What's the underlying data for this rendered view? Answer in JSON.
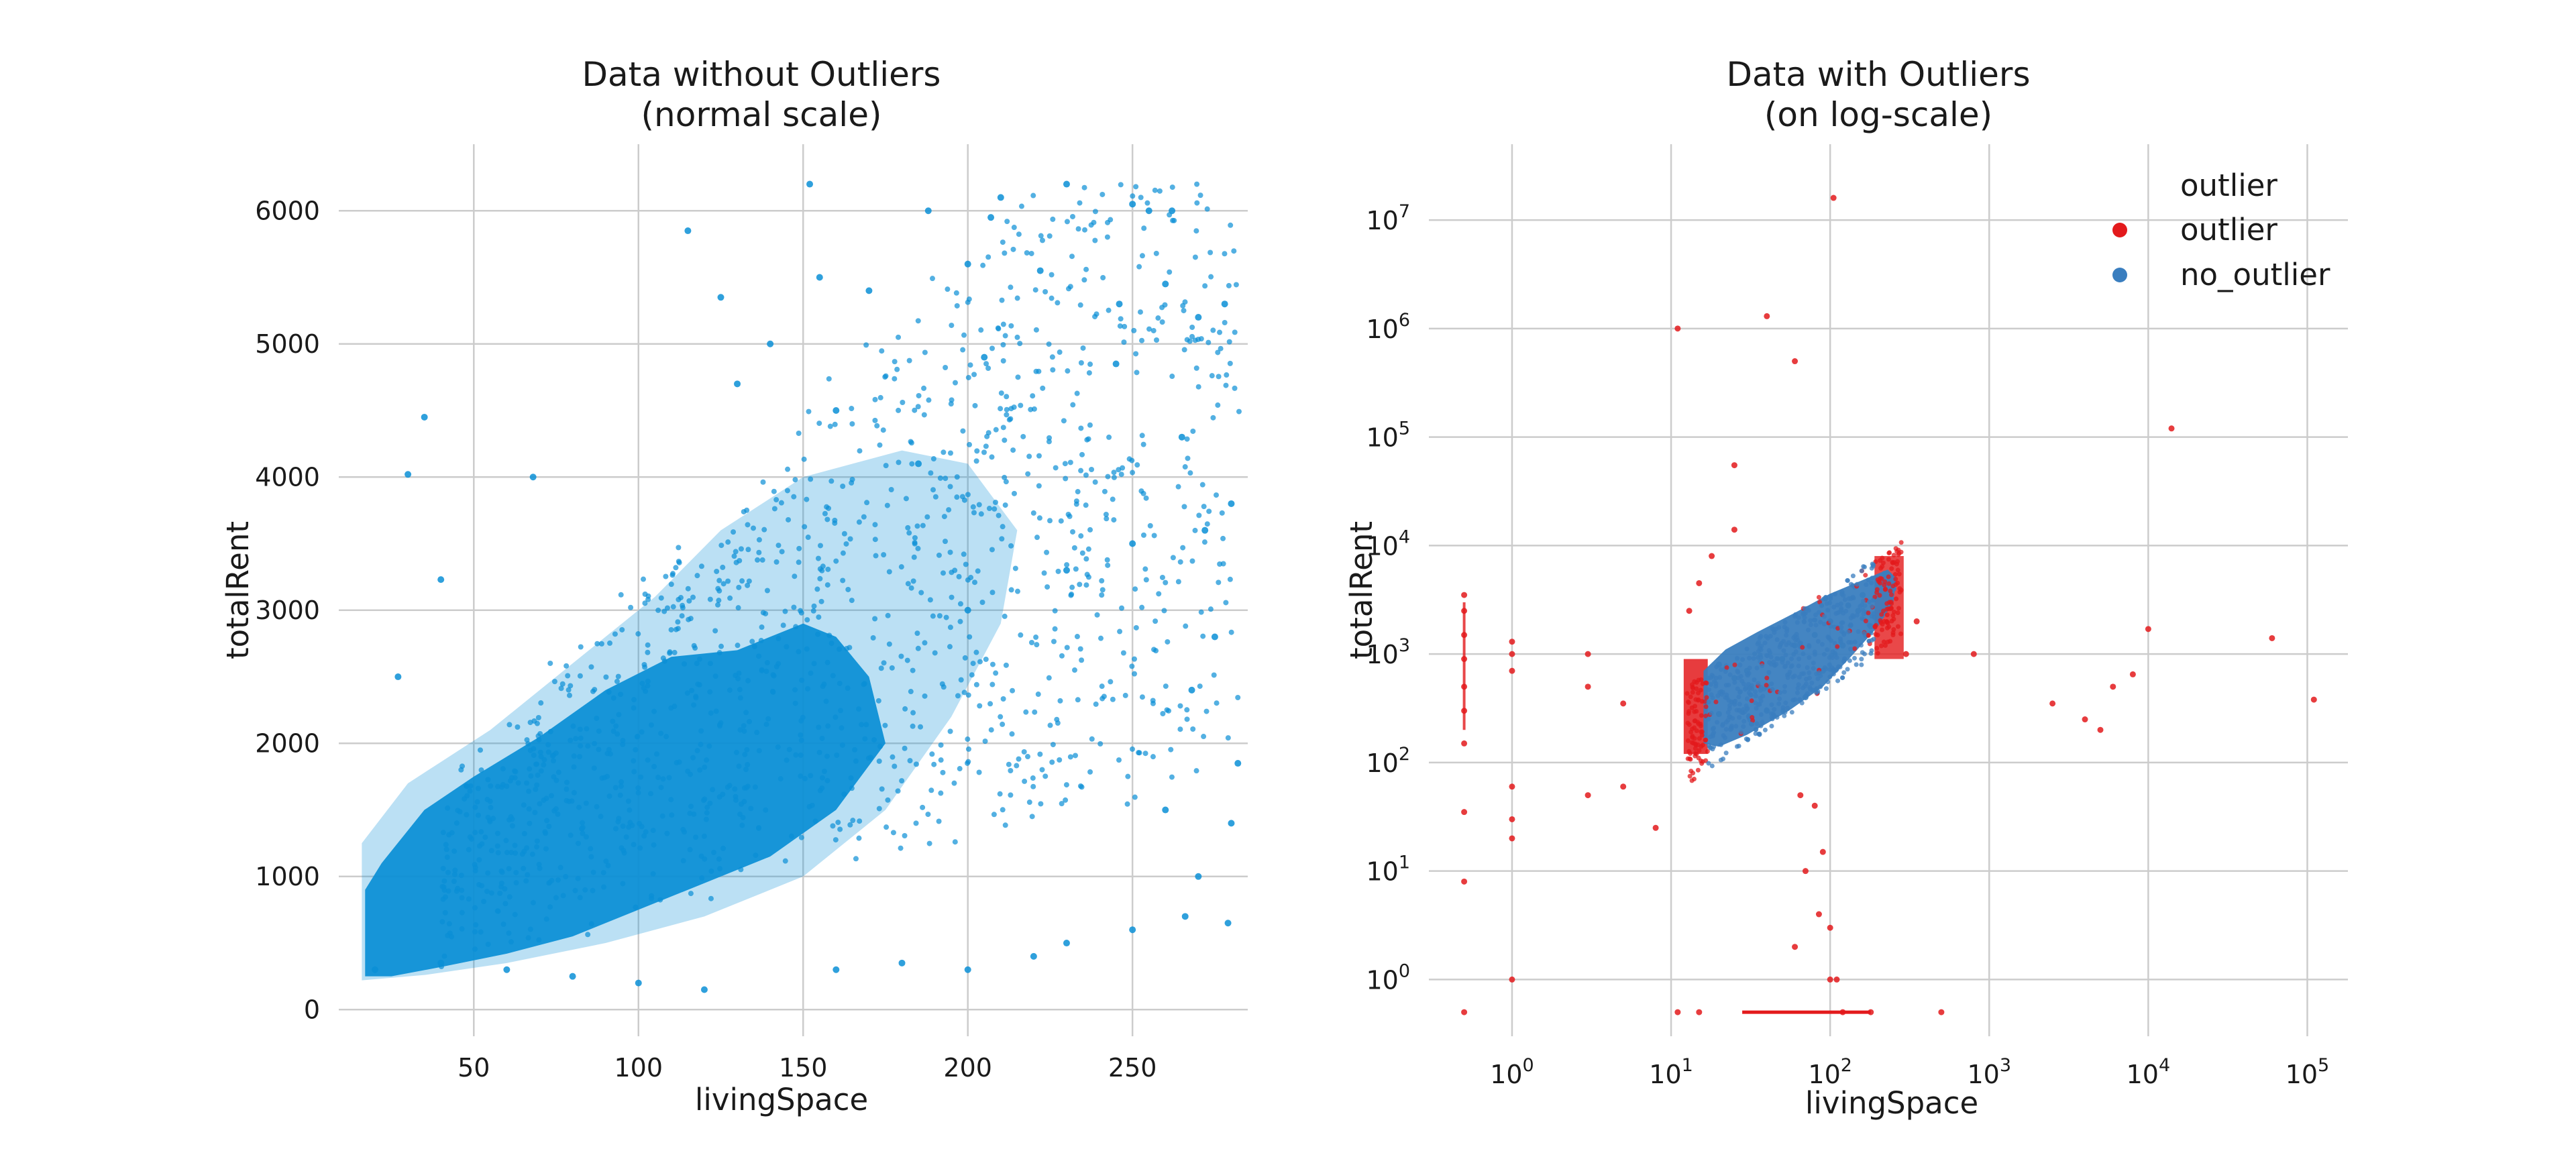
{
  "chart_data": [
    {
      "type": "scatter",
      "title": [
        "Data without Outliers",
        "(normal scale)"
      ],
      "xlabel": "livingSpace",
      "ylabel": "totalRent",
      "xlim": [
        9,
        285
      ],
      "ylim": [
        -200,
        6500
      ],
      "xticks": [
        50,
        100,
        150,
        200,
        250
      ],
      "yticks": [
        0,
        1000,
        2000,
        3000,
        4000,
        5000,
        6000
      ],
      "grid": true,
      "x_scale": "linear",
      "y_scale": "linear",
      "series": [
        {
          "color": "#0a8fd6",
          "points": [
            [
              35,
              4450
            ],
            [
              30,
              4020
            ],
            [
              40,
              3230
            ],
            [
              27,
              2500
            ],
            [
              68,
              4000
            ],
            [
              115,
              5850
            ],
            [
              152,
              6200
            ],
            [
              210,
              6100
            ],
            [
              230,
              6200
            ],
            [
              250,
              6050
            ],
            [
              255,
              6000
            ],
            [
              262,
              6000
            ],
            [
              188,
              6000
            ],
            [
              207,
              5950
            ],
            [
              155,
              5500
            ],
            [
              278,
              5300
            ],
            [
              270,
              5200
            ],
            [
              246,
              5300
            ],
            [
              260,
              5450
            ],
            [
              170,
              5400
            ],
            [
              200,
              5600
            ],
            [
              222,
              5550
            ],
            [
              140,
              5000
            ],
            [
              130,
              4700
            ],
            [
              125,
              5350
            ],
            [
              160,
              4500
            ],
            [
              185,
              4100
            ],
            [
              205,
              4900
            ],
            [
              245,
              4850
            ],
            [
              265,
              4300
            ],
            [
              280,
              3800
            ],
            [
              272,
              3600
            ],
            [
              250,
              3500
            ],
            [
              230,
              3300
            ],
            [
              200,
              3000
            ],
            [
              275,
              2800
            ],
            [
              268,
              2400
            ],
            [
              260,
              1500
            ],
            [
              280,
              1400
            ],
            [
              282,
              1850
            ],
            [
              270,
              1000
            ],
            [
              266,
              700
            ],
            [
              279,
              650
            ],
            [
              250,
              600
            ],
            [
              230,
              500
            ],
            [
              200,
              300
            ],
            [
              220,
              400
            ],
            [
              180,
              350
            ],
            [
              160,
              300
            ],
            [
              120,
              150
            ],
            [
              100,
              200
            ],
            [
              80,
              250
            ],
            [
              60,
              300
            ],
            [
              40,
              350
            ],
            [
              20,
              300
            ]
          ]
        }
      ]
    },
    {
      "type": "scatter",
      "title": [
        "Data with Outliers",
        "(on log-scale)"
      ],
      "xlabel": "livingSpace",
      "ylabel": "totalRent",
      "x_scale": "log",
      "y_scale": "log",
      "xlim": [
        0.3,
        180000
      ],
      "ylim": [
        0.3,
        50000000
      ],
      "xticks": [
        1,
        10,
        100,
        1000,
        10000,
        100000
      ],
      "yticks": [
        1,
        10,
        100,
        1000,
        10000,
        100000,
        1000000,
        10000000
      ],
      "grid": true,
      "legend": {
        "title": "outlier",
        "placement": "top-right",
        "entries": [
          {
            "label": "outlier",
            "color": "#e31a1c"
          },
          {
            "label": "no_outlier",
            "color": "#3a7ebf"
          }
        ]
      },
      "series": [
        {
          "name": "outlier",
          "color": "#e31a1c",
          "points": [
            [
              0.5,
              0.5
            ],
            [
              0.5,
              3500
            ],
            [
              0.5,
              2500
            ],
            [
              0.5,
              1500
            ],
            [
              0.5,
              900
            ],
            [
              0.5,
              500
            ],
            [
              0.5,
              300
            ],
            [
              0.5,
              150
            ],
            [
              0.5,
              35
            ],
            [
              0.5,
              8
            ],
            [
              1,
              1000
            ],
            [
              1,
              1300
            ],
            [
              1,
              60
            ],
            [
              1,
              30
            ],
            [
              1,
              1
            ],
            [
              1,
              20
            ],
            [
              1,
              700
            ],
            [
              3,
              1000
            ],
            [
              3,
              500
            ],
            [
              3,
              50
            ],
            [
              5,
              350
            ],
            [
              5,
              60
            ],
            [
              8,
              25
            ],
            [
              11,
              1000000
            ],
            [
              13,
              2500
            ],
            [
              15,
              4500
            ],
            [
              18,
              8000
            ],
            [
              25,
              14000
            ],
            [
              25,
              55000
            ],
            [
              40,
              1300000
            ],
            [
              60,
              500000
            ],
            [
              105,
              16000000
            ],
            [
              80,
              40
            ],
            [
              90,
              15
            ],
            [
              85,
              4
            ],
            [
              70,
              10
            ],
            [
              60,
              2
            ],
            [
              65,
              50
            ],
            [
              100,
              3
            ],
            [
              100,
              1
            ],
            [
              110,
              1
            ],
            [
              120,
              0.5
            ],
            [
              180,
              0.5
            ],
            [
              500,
              0.5
            ],
            [
              11,
              0.5
            ],
            [
              15,
              0.5
            ],
            [
              14000,
              120000
            ],
            [
              800,
              1000
            ],
            [
              2500,
              350
            ],
            [
              4000,
              250
            ],
            [
              5000,
              200
            ],
            [
              6000,
              500
            ],
            [
              8000,
              650
            ],
            [
              10000,
              1700
            ],
            [
              60000,
              1400
            ],
            [
              110000,
              380
            ],
            [
              300,
              1000
            ],
            [
              350,
              2000
            ]
          ]
        },
        {
          "name": "no_outlier",
          "color": "#3a7ebf",
          "points": [
            [
              20,
              280
            ],
            [
              20,
              800
            ],
            [
              25,
              600
            ],
            [
              30,
              700
            ],
            [
              40,
              500
            ],
            [
              50,
              900
            ],
            [
              60,
              1200
            ],
            [
              80,
              1500
            ],
            [
              100,
              2000
            ],
            [
              130,
              2800
            ],
            [
              160,
              3500
            ],
            [
              200,
              4500
            ],
            [
              220,
              5500
            ],
            [
              120,
              1200
            ],
            [
              90,
              700
            ],
            [
              70,
              400
            ],
            [
              40,
              300
            ],
            [
              150,
              2500
            ],
            [
              180,
              1800
            ],
            [
              250,
              4000
            ]
          ]
        }
      ]
    }
  ]
}
